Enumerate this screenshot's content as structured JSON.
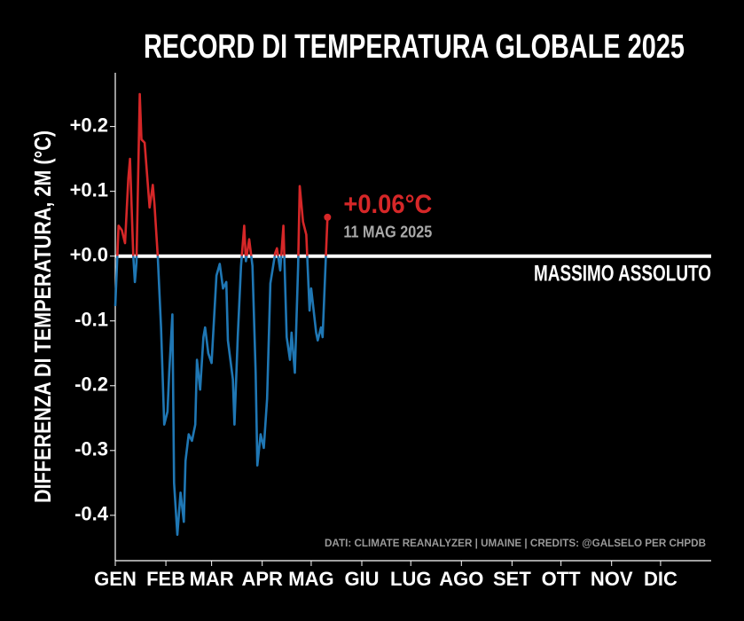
{
  "chart_data": {
    "type": "line",
    "title": "RECORD DI TEMPERATURA GLOBALE 2025",
    "y_label": "DIFFERENZA DI TEMPERATURA, 2M (°C)",
    "reference_label": "MASSIMO ASSOLUTO",
    "annotation": {
      "label": "+0.06°C",
      "date": "11 MAG 2025"
    },
    "source": "DATI: CLIMATE REANALYZER | UMAINE  | CREDITS: @GALSELO PER CHPDB",
    "color_above": "#d62728",
    "color_below": "#1f77b4",
    "x": [
      0,
      2,
      4,
      6,
      8,
      9,
      11,
      12,
      13,
      15,
      16,
      18,
      21,
      23,
      24,
      26,
      28,
      30,
      32,
      33,
      35,
      36,
      38,
      40,
      42,
      43,
      45,
      47,
      49,
      50,
      52,
      54,
      55,
      57,
      59,
      60,
      62,
      64,
      66,
      68,
      69,
      72,
      73,
      75,
      77,
      79,
      80,
      82,
      84,
      86,
      87,
      89,
      91,
      93,
      95,
      98,
      99,
      101,
      103,
      105,
      107,
      108,
      110,
      112,
      113,
      115,
      117,
      119,
      120,
      123,
      124,
      126,
      127,
      129,
      130
    ],
    "values": [
      -0.077,
      0.047,
      0.04,
      0.02,
      0.12,
      0.15,
      0.0,
      -0.04,
      -0.01,
      0.25,
      0.18,
      0.175,
      0.075,
      0.11,
      0.08,
      0.0,
      -0.11,
      -0.26,
      -0.24,
      -0.18,
      -0.09,
      -0.35,
      -0.43,
      -0.365,
      -0.41,
      -0.316,
      -0.275,
      -0.285,
      -0.26,
      -0.16,
      -0.206,
      -0.125,
      -0.11,
      -0.15,
      -0.165,
      -0.118,
      -0.03,
      -0.012,
      -0.05,
      -0.04,
      -0.13,
      -0.19,
      -0.26,
      -0.125,
      -0.015,
      0.047,
      -0.008,
      0.026,
      -0.015,
      -0.18,
      -0.323,
      -0.275,
      -0.296,
      -0.22,
      -0.042,
      0.005,
      0.012,
      -0.022,
      0.047,
      -0.125,
      -0.16,
      -0.118,
      -0.18,
      -0.015,
      0.108,
      0.053,
      0.033,
      -0.084,
      -0.05,
      -0.118,
      -0.13,
      -0.11,
      -0.125,
      0.0,
      0.06
    ],
    "xlim": [
      0,
      365
    ],
    "ylim": [
      -0.47,
      0.283
    ],
    "xticks": [
      {
        "value": 0,
        "label": "GEN"
      },
      {
        "value": 31,
        "label": "FEB"
      },
      {
        "value": 59,
        "label": "MAR"
      },
      {
        "value": 90,
        "label": "APR"
      },
      {
        "value": 120,
        "label": "MAG"
      },
      {
        "value": 151,
        "label": "GIU"
      },
      {
        "value": 181,
        "label": "LUG"
      },
      {
        "value": 212,
        "label": "AGO"
      },
      {
        "value": 243,
        "label": "SET"
      },
      {
        "value": 273,
        "label": "OTT"
      },
      {
        "value": 304,
        "label": "NOV"
      },
      {
        "value": 334,
        "label": "DIC"
      }
    ],
    "yticks": [
      {
        "value": 0.2,
        "label": "+0.2"
      },
      {
        "value": 0.1,
        "label": "+0.1"
      },
      {
        "value": 0,
        "label": "+0.0"
      },
      {
        "value": -0.1,
        "label": "-0.1"
      },
      {
        "value": -0.2,
        "label": "-0.2"
      },
      {
        "value": -0.3,
        "label": "-0.3"
      },
      {
        "value": -0.4,
        "label": "-0.4"
      }
    ]
  }
}
